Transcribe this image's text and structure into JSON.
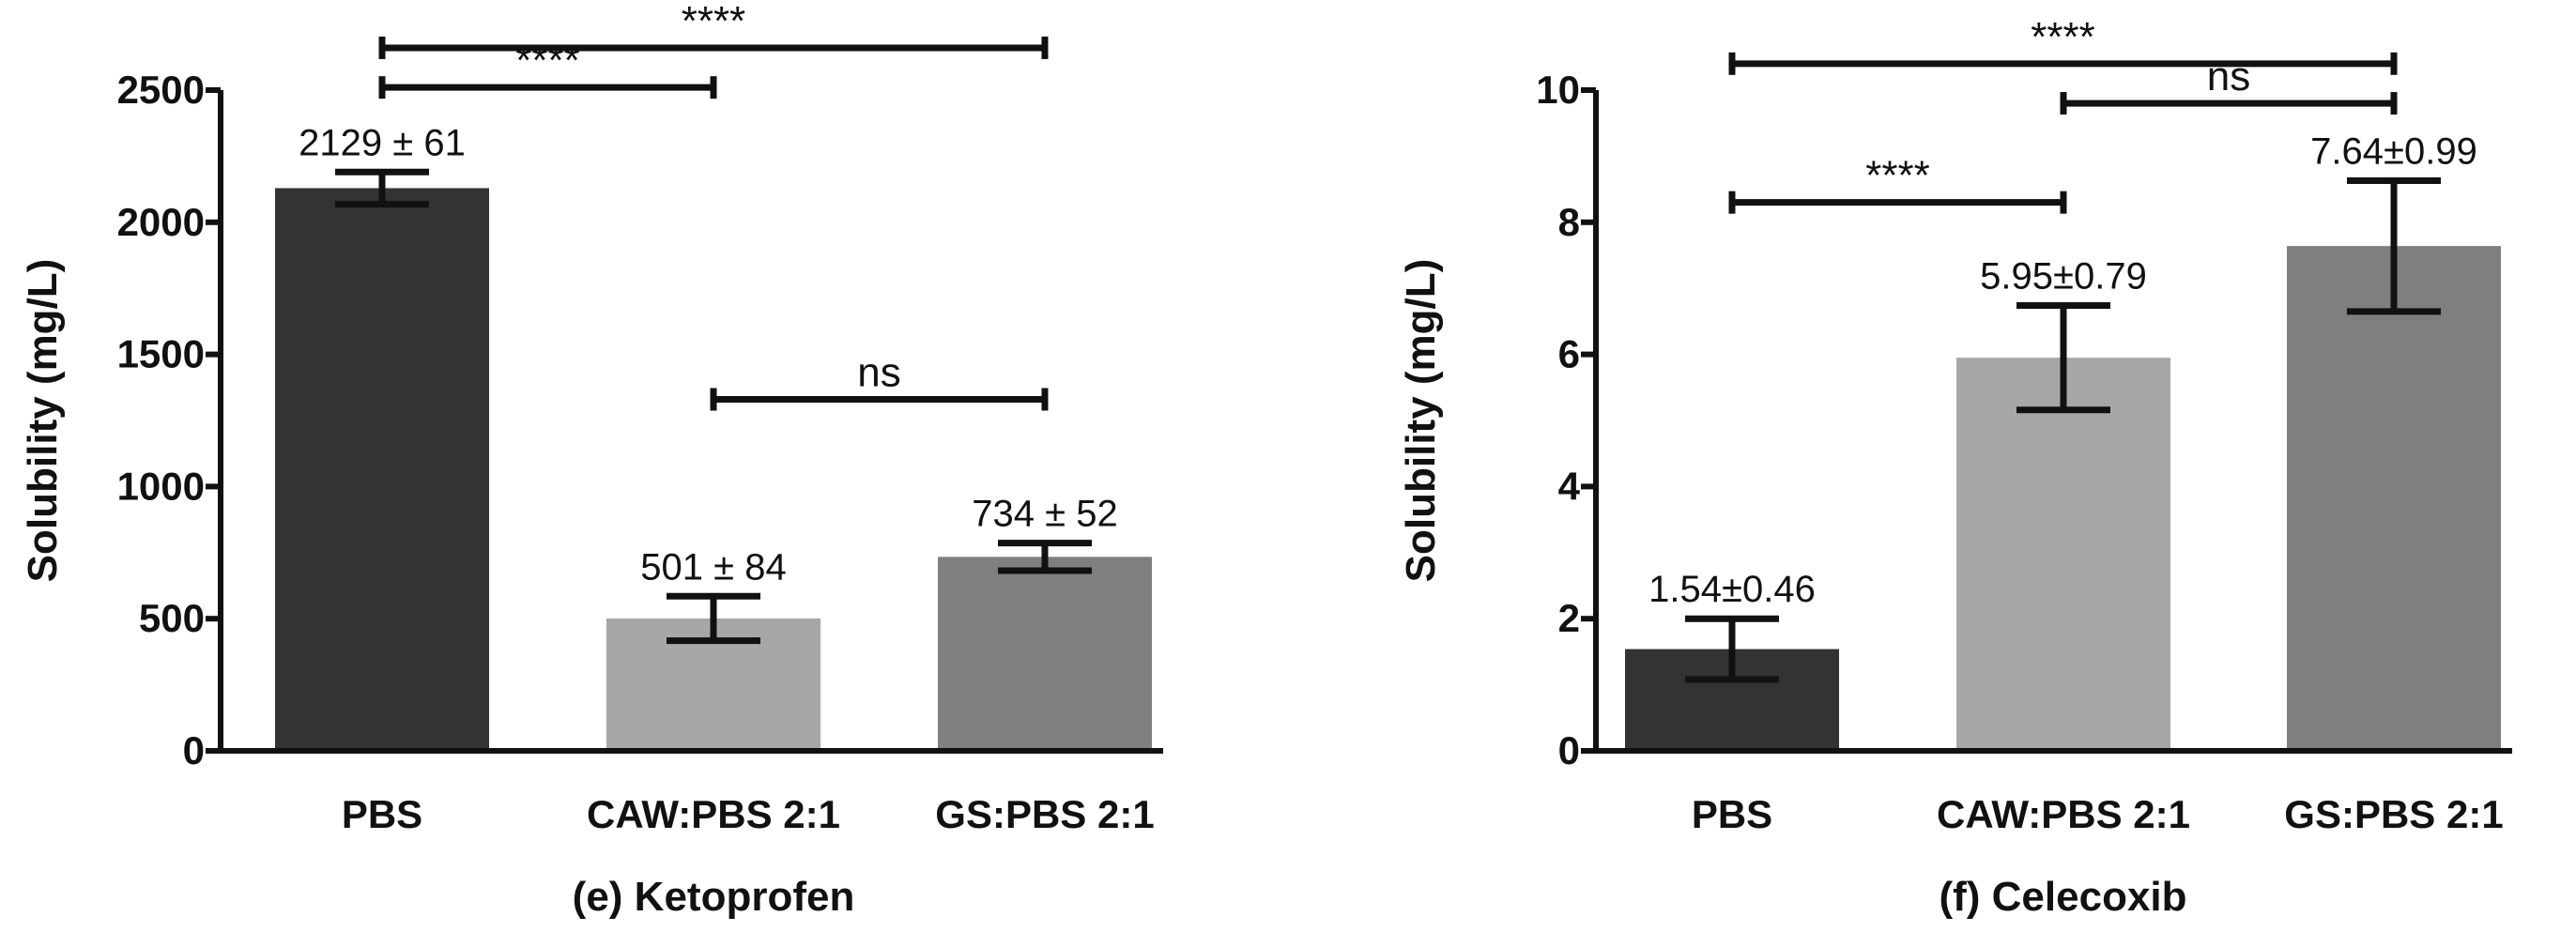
{
  "chart_data": [
    {
      "type": "bar",
      "caption": "(e) Ketoprofen",
      "ylabel": "Solubility (mg/L)",
      "ylim": [
        0,
        2500
      ],
      "yticks": [
        0,
        500,
        1000,
        1500,
        2000,
        2500
      ],
      "yticks_text": [
        "0",
        "500",
        "1000",
        "1500",
        "2000",
        "2500"
      ],
      "categories": [
        "PBS",
        "CAW:PBS 2:1",
        "GS:PBS 2:1"
      ],
      "values": [
        2129,
        501,
        734
      ],
      "errors": [
        61,
        84,
        52
      ],
      "data_labels": [
        "2129 ± 61",
        "501 ± 84",
        "734 ± 52"
      ],
      "bar_colors": [
        "#333333",
        "#a7a7aa",
        "#7f7f7f"
      ],
      "significance": [
        {
          "from": 0,
          "to": 2,
          "label": "****",
          "at": 2660
        },
        {
          "from": 0,
          "to": 1,
          "label": "****",
          "at": 2510
        },
        {
          "from": 1,
          "to": 2,
          "label": "ns",
          "at": 1330
        }
      ]
    },
    {
      "type": "bar",
      "caption": "(f) Celecoxib",
      "ylabel": "Solubility (mg/L)",
      "ylim": [
        0,
        10
      ],
      "yticks": [
        0,
        2,
        4,
        6,
        8,
        10
      ],
      "yticks_text": [
        "0",
        "2",
        "4",
        "6",
        "8",
        "10"
      ],
      "categories": [
        "PBS",
        "CAW:PBS 2:1",
        "GS:PBS 2:1"
      ],
      "values": [
        1.54,
        5.95,
        7.64
      ],
      "errors": [
        0.46,
        0.79,
        0.99
      ],
      "data_labels": [
        "1.54±0.46",
        "5.95±0.79",
        "7.64±0.99"
      ],
      "bar_colors": [
        "#333333",
        "#a7a7aa",
        "#7f7f7f"
      ],
      "significance": [
        {
          "from": 0,
          "to": 2,
          "label": "****",
          "at": 10.4
        },
        {
          "from": 1,
          "to": 2,
          "label": "ns",
          "at": 9.8
        },
        {
          "from": 0,
          "to": 1,
          "label": "****",
          "at": 8.3
        }
      ]
    }
  ]
}
